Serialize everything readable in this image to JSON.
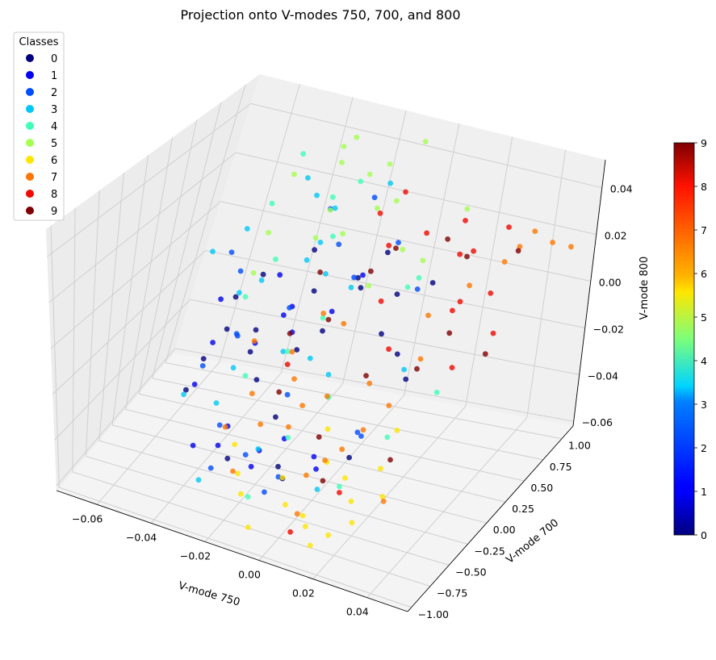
{
  "chart_data": {
    "type": "scatter",
    "projection": "3d",
    "title": "Projection onto V-modes 750, 700, and 800",
    "xlabel": "V-mode 750",
    "ylabel": "V-mode 700",
    "zlabel": "V-mode 800",
    "xlim": [
      -0.075,
      0.055
    ],
    "ylim": [
      -1.05,
      1.15
    ],
    "zlim": [
      -0.062,
      0.052
    ],
    "x_ticks": [
      -0.06,
      -0.04,
      -0.02,
      0.0,
      0.02,
      0.04
    ],
    "x_tick_labels": [
      "−0.06",
      "−0.04",
      "−0.02",
      "0.00",
      "0.02",
      "0.04"
    ],
    "y_ticks": [
      -1.0,
      -0.75,
      -0.5,
      -0.25,
      0.0,
      0.25,
      0.5,
      0.75,
      1.0
    ],
    "y_tick_labels": [
      "−1.00",
      "−0.75",
      "−0.50",
      "−0.25",
      "0.00",
      "0.25",
      "0.50",
      "0.75",
      "1.00"
    ],
    "z_ticks": [
      -0.06,
      -0.04,
      -0.02,
      0.0,
      0.02,
      0.04
    ],
    "z_tick_labels": [
      "−0.06",
      "−0.04",
      "−0.02",
      "0.00",
      "0.02",
      "0.04"
    ],
    "grid": true,
    "legend": {
      "title": "Classes",
      "placement": "top-left",
      "entries": [
        "0",
        "1",
        "2",
        "3",
        "4",
        "5",
        "6",
        "7",
        "8",
        "9"
      ]
    },
    "colorbar": {
      "range": [
        0,
        9
      ],
      "ticks": [
        0,
        1,
        2,
        3,
        4,
        5,
        6,
        7,
        8,
        9
      ],
      "tick_labels": [
        "0",
        "1",
        "2",
        "3",
        "4",
        "5",
        "6",
        "7",
        "8",
        "9"
      ],
      "colormap": "jet"
    },
    "class_colors": [
      "#00007f",
      "#0000f1",
      "#004cff",
      "#00c8f6",
      "#40ffb7",
      "#a4ff53",
      "#ffe500",
      "#ff7700",
      "#f10800",
      "#7f0000"
    ],
    "series": [
      {
        "name": "0",
        "x": [
          -0.035,
          -0.032,
          -0.02,
          -0.005,
          -0.028,
          -0.014,
          0.004,
          -0.03,
          -0.016,
          -0.008,
          -0.024,
          0.012,
          -0.038,
          -0.02,
          0.0,
          0.016,
          -0.012,
          -0.026,
          0.008,
          0.02,
          -0.004,
          -0.018,
          -0.034,
          0.024,
          -0.01
        ],
        "y": [
          -0.2,
          0.1,
          -0.7,
          -0.5,
          0.6,
          0.3,
          -0.9,
          -0.3,
          0.8,
          -0.1,
          0.4,
          0.7,
          -0.6,
          0.0,
          0.2,
          -0.4,
          1.0,
          -0.8,
          0.5,
          -0.2,
          0.9,
          -0.5,
          0.3,
          0.0,
          -0.7
        ],
        "z": [
          0.0,
          0.015,
          -0.035,
          -0.045,
          0.01,
          -0.01,
          -0.02,
          0.02,
          -0.005,
          0.025,
          -0.025,
          0.005,
          -0.015,
          -0.04,
          0.018,
          -0.03,
          0.0,
          0.012,
          -0.02,
          0.022,
          -0.012,
          0.008,
          -0.038,
          -0.006,
          0.03
        ]
      },
      {
        "name": "1",
        "x": [
          -0.04,
          -0.03,
          -0.022,
          -0.012,
          -0.036,
          -0.026,
          -0.018,
          -0.006,
          -0.032,
          -0.014,
          0.002,
          -0.042,
          -0.02,
          -0.01,
          0.006,
          -0.028,
          -0.038,
          -0.016
        ],
        "y": [
          -0.4,
          -0.8,
          0.2,
          -0.2,
          0.5,
          -0.6,
          0.0,
          -0.9,
          0.1,
          0.4,
          -0.3,
          -0.1,
          -0.7,
          0.6,
          -0.5,
          0.3,
          -0.2,
          -0.4
        ],
        "z": [
          -0.02,
          -0.03,
          -0.01,
          -0.04,
          0.0,
          -0.035,
          0.01,
          -0.025,
          -0.015,
          -0.005,
          -0.045,
          -0.012,
          -0.02,
          0.005,
          -0.03,
          -0.008,
          0.012,
          -0.04
        ]
      },
      {
        "name": "2",
        "x": [
          -0.045,
          -0.036,
          -0.028,
          -0.02,
          -0.012,
          -0.004,
          -0.04,
          -0.03,
          -0.024,
          -0.016,
          0.004,
          0.012,
          -0.034,
          -0.008,
          0.02,
          -0.044,
          -0.026,
          -0.002,
          -0.018,
          0.016
        ],
        "y": [
          0.3,
          0.0,
          -0.5,
          0.6,
          -0.2,
          -0.8,
          -0.3,
          0.8,
          0.2,
          -0.6,
          -0.9,
          0.5,
          -0.1,
          0.4,
          -0.4,
          0.1,
          -0.7,
          0.7,
          0.9,
          -0.3
        ],
        "z": [
          0.005,
          -0.01,
          -0.03,
          0.015,
          -0.02,
          -0.04,
          -0.015,
          0.02,
          0.0,
          -0.035,
          -0.025,
          0.01,
          -0.005,
          0.012,
          -0.018,
          0.02,
          -0.042,
          0.018,
          0.025,
          -0.022
        ]
      },
      {
        "name": "3",
        "x": [
          -0.05,
          -0.042,
          -0.034,
          -0.026,
          -0.018,
          -0.01,
          -0.046,
          -0.038,
          -0.03,
          -0.022,
          -0.014,
          -0.006,
          0.002,
          -0.048,
          -0.04,
          -0.032,
          -0.024,
          -0.016,
          0.01,
          0.018,
          -0.044,
          -0.028
        ],
        "y": [
          0.5,
          0.2,
          -0.1,
          0.7,
          0.4,
          0.0,
          -0.3,
          0.9,
          0.6,
          0.1,
          -0.5,
          0.3,
          -0.2,
          0.0,
          0.8,
          -0.4,
          0.5,
          1.0,
          -0.6,
          0.2,
          0.6,
          -0.8
        ],
        "z": [
          0.015,
          0.0,
          -0.02,
          0.025,
          0.01,
          -0.01,
          -0.03,
          0.02,
          0.005,
          -0.015,
          -0.035,
          0.012,
          -0.005,
          0.022,
          0.03,
          -0.025,
          0.018,
          0.028,
          -0.04,
          -0.012,
          -0.008,
          -0.045
        ]
      },
      {
        "name": "4",
        "x": [
          -0.048,
          -0.036,
          -0.024,
          -0.012,
          0.0,
          0.012,
          -0.042,
          -0.03,
          -0.018,
          -0.006,
          0.006,
          0.024,
          -0.046,
          -0.02,
          0.018,
          0.03,
          -0.034,
          -0.01
        ],
        "y": [
          0.7,
          0.4,
          0.9,
          0.2,
          -0.1,
          0.5,
          0.3,
          0.8,
          0.0,
          -0.4,
          0.6,
          -0.2,
          0.9,
          0.5,
          -0.6,
          0.2,
          0.1,
          -0.8
        ],
        "z": [
          0.02,
          0.01,
          0.03,
          0.0,
          -0.02,
          0.015,
          -0.005,
          0.025,
          -0.01,
          -0.03,
          0.005,
          -0.025,
          0.035,
          0.022,
          -0.035,
          -0.018,
          -0.03,
          -0.045
        ]
      },
      {
        "name": "5",
        "x": [
          -0.045,
          -0.035,
          -0.025,
          -0.015,
          -0.005,
          0.005,
          -0.04,
          -0.03,
          -0.02,
          -0.01,
          0.0,
          0.015,
          -0.038,
          -0.028,
          -0.018,
          -0.008,
          0.01,
          -0.022
        ],
        "y": [
          0.8,
          1.0,
          0.6,
          0.9,
          0.7,
          0.5,
          0.4,
          0.95,
          0.85,
          0.65,
          0.3,
          0.9,
          0.2,
          0.75,
          0.55,
          1.05,
          0.6,
          0.35
        ],
        "z": [
          0.03,
          0.038,
          0.028,
          0.04,
          0.035,
          0.025,
          0.02,
          0.045,
          0.036,
          0.032,
          0.015,
          0.03,
          0.01,
          0.042,
          0.022,
          0.046,
          0.018,
          0.026
        ]
      },
      {
        "name": "6",
        "x": [
          -0.01,
          0.0,
          0.01,
          0.02,
          0.03,
          -0.005,
          0.005,
          0.015,
          0.025,
          0.035,
          -0.015,
          0.012,
          0.022,
          0.008,
          0.028,
          0.018,
          -0.02,
          0.03
        ],
        "y": [
          -0.9,
          -0.7,
          -0.8,
          -0.6,
          -0.5,
          -1.0,
          -0.85,
          -0.95,
          -0.7,
          -0.65,
          -0.75,
          -0.55,
          -0.9,
          -0.4,
          -0.8,
          -1.0,
          -0.6,
          -0.3
        ],
        "z": [
          -0.04,
          -0.035,
          -0.045,
          -0.03,
          -0.025,
          -0.05,
          -0.04,
          -0.042,
          -0.035,
          -0.03,
          -0.038,
          -0.028,
          -0.045,
          -0.02,
          -0.04,
          -0.048,
          -0.032,
          -0.015
        ]
      },
      {
        "name": "7",
        "x": [
          -0.03,
          -0.022,
          -0.014,
          -0.006,
          0.002,
          0.01,
          0.018,
          0.026,
          0.034,
          -0.026,
          -0.018,
          -0.01,
          -0.002,
          0.006,
          0.014,
          0.022,
          0.03,
          0.038,
          0.044,
          0.048,
          0.04,
          0.036,
          -0.016,
          -0.004,
          0.008,
          0.016,
          0.024,
          -0.012
        ],
        "y": [
          0.0,
          -0.3,
          -0.1,
          -0.4,
          -0.2,
          -0.5,
          -0.3,
          0.1,
          -0.6,
          -0.5,
          -0.7,
          -0.2,
          0.1,
          -0.6,
          -0.1,
          0.3,
          0.5,
          0.8,
          1.0,
          1.1,
          0.9,
          0.7,
          -0.4,
          -0.3,
          -0.8,
          -0.5,
          -0.2,
          0.2
        ],
        "z": [
          -0.01,
          -0.02,
          -0.005,
          -0.025,
          -0.015,
          -0.03,
          -0.02,
          0.0,
          -0.035,
          -0.03,
          -0.04,
          -0.012,
          0.005,
          -0.035,
          -0.008,
          0.01,
          0.018,
          0.025,
          0.02,
          0.015,
          0.028,
          0.022,
          -0.028,
          -0.018,
          -0.045,
          -0.022,
          -0.01,
          0.002
        ]
      },
      {
        "name": "8",
        "x": [
          0.0,
          0.01,
          0.02,
          0.03,
          -0.005,
          0.005,
          0.015,
          0.025,
          0.035,
          -0.01,
          0.012,
          0.022,
          0.032,
          0.04,
          0.028,
          -0.02,
          0.018,
          0.008
        ],
        "y": [
          0.5,
          0.6,
          0.7,
          0.4,
          0.8,
          0.3,
          0.9,
          0.5,
          0.6,
          0.7,
          0.2,
          0.8,
          0.3,
          0.5,
          1.0,
          0.1,
          -0.6,
          -0.9
        ],
        "z": [
          0.025,
          0.03,
          0.02,
          0.015,
          0.035,
          0.01,
          0.025,
          0.005,
          0.012,
          0.028,
          -0.005,
          0.018,
          -0.01,
          0.0,
          0.022,
          -0.02,
          -0.038,
          -0.05
        ]
      },
      {
        "name": "9",
        "x": [
          -0.02,
          -0.01,
          0.0,
          0.01,
          0.02,
          0.03,
          -0.015,
          -0.005,
          0.005,
          0.015,
          0.025,
          0.035,
          -0.025,
          0.012,
          0.028,
          0.038
        ],
        "y": [
          0.4,
          0.2,
          0.6,
          0.0,
          0.8,
          0.3,
          -0.2,
          0.5,
          -0.4,
          0.7,
          0.1,
          0.9,
          0.3,
          -0.6,
          -0.3,
          0.5
        ],
        "z": [
          0.01,
          0.0,
          0.02,
          -0.01,
          0.015,
          0.005,
          -0.02,
          0.012,
          -0.025,
          0.025,
          -0.005,
          0.018,
          -0.015,
          -0.035,
          -0.03,
          -0.01
        ]
      }
    ]
  }
}
